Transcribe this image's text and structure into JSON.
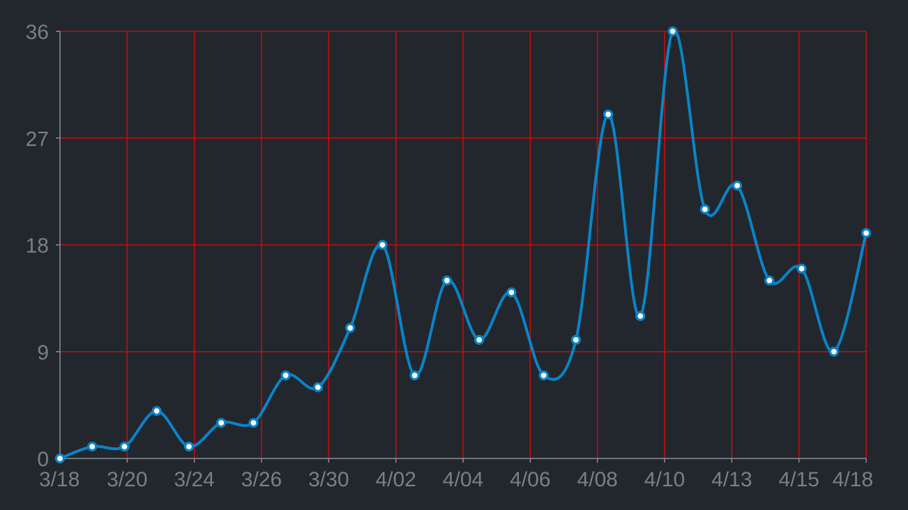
{
  "chart_data": {
    "type": "line",
    "title": "",
    "xlabel": "",
    "ylabel": "",
    "x_tick_labels": [
      "3/18",
      "3/20",
      "3/24",
      "3/26",
      "3/30",
      "4/02",
      "4/04",
      "4/06",
      "4/08",
      "4/10",
      "4/13",
      "4/15",
      "4/18"
    ],
    "y_ticks": [
      0,
      9,
      18,
      27,
      36
    ],
    "y_tick_labels": [
      "0",
      "9",
      "18",
      "27",
      "36"
    ],
    "ylim": [
      0,
      36
    ],
    "grid": true,
    "series": [
      {
        "values": [
          0,
          1,
          1,
          4,
          1,
          3,
          3,
          7,
          6,
          11,
          18,
          7,
          15,
          10,
          14,
          7,
          10,
          29,
          12,
          36,
          21,
          23,
          15,
          16,
          9,
          19
        ]
      }
    ],
    "colors": {
      "background": "#22272e",
      "grid": "#cc0a0a",
      "axis": "#8a8f96",
      "line": "#0a84c8",
      "marker_fill": "#ffffff",
      "tick_text": "#7a7f86"
    }
  }
}
